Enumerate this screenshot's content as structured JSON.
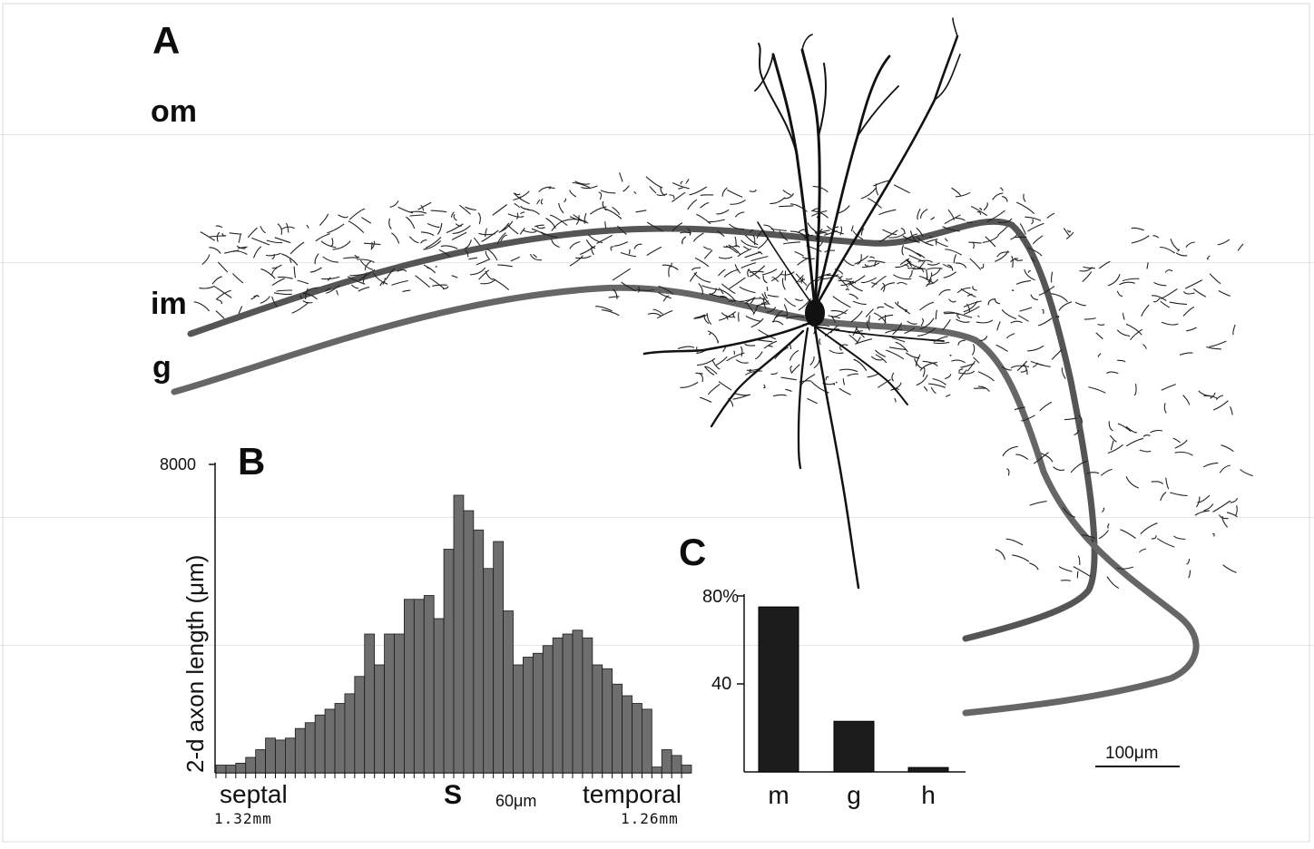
{
  "panelA": {
    "letter": "A",
    "layers": {
      "om": "om",
      "im": "im",
      "g": "g"
    },
    "scalebar": {
      "label": "100μm"
    }
  },
  "panelB": {
    "letter": "B",
    "ytick_top": "8000",
    "ylabel": "2-d axon length (μm)",
    "septal": "septal",
    "septal_dist": "1.32mm",
    "s_marker": "S",
    "bin_label": "60μm",
    "temporal": "temporal",
    "temporal_dist": "1.26mm"
  },
  "panelC": {
    "letter": "C",
    "ytick_top": "80%",
    "ytick_mid": "40"
  },
  "chart_data": [
    {
      "type": "bar",
      "panel": "B",
      "title": "",
      "xlabel": "",
      "ylabel": "2-d axon length (μm)",
      "ylim": [
        0,
        8000
      ],
      "values": [
        200,
        200,
        250,
        400,
        600,
        900,
        850,
        900,
        1150,
        1300,
        1500,
        1650,
        1800,
        2050,
        2500,
        3600,
        2800,
        3600,
        3600,
        4500,
        4500,
        4600,
        4000,
        5800,
        7200,
        6800,
        6300,
        5300,
        6000,
        4200,
        2800,
        3000,
        3100,
        3300,
        3500,
        3600,
        3700,
        3500,
        2800,
        2700,
        2300,
        2000,
        1800,
        1650,
        150,
        600,
        450,
        200
      ],
      "grid": false
    },
    {
      "type": "bar",
      "panel": "C",
      "title": "",
      "categories": [
        "m",
        "g",
        "h"
      ],
      "values": [
        75,
        23,
        2
      ],
      "ylim": [
        0,
        80
      ],
      "grid": false
    }
  ]
}
